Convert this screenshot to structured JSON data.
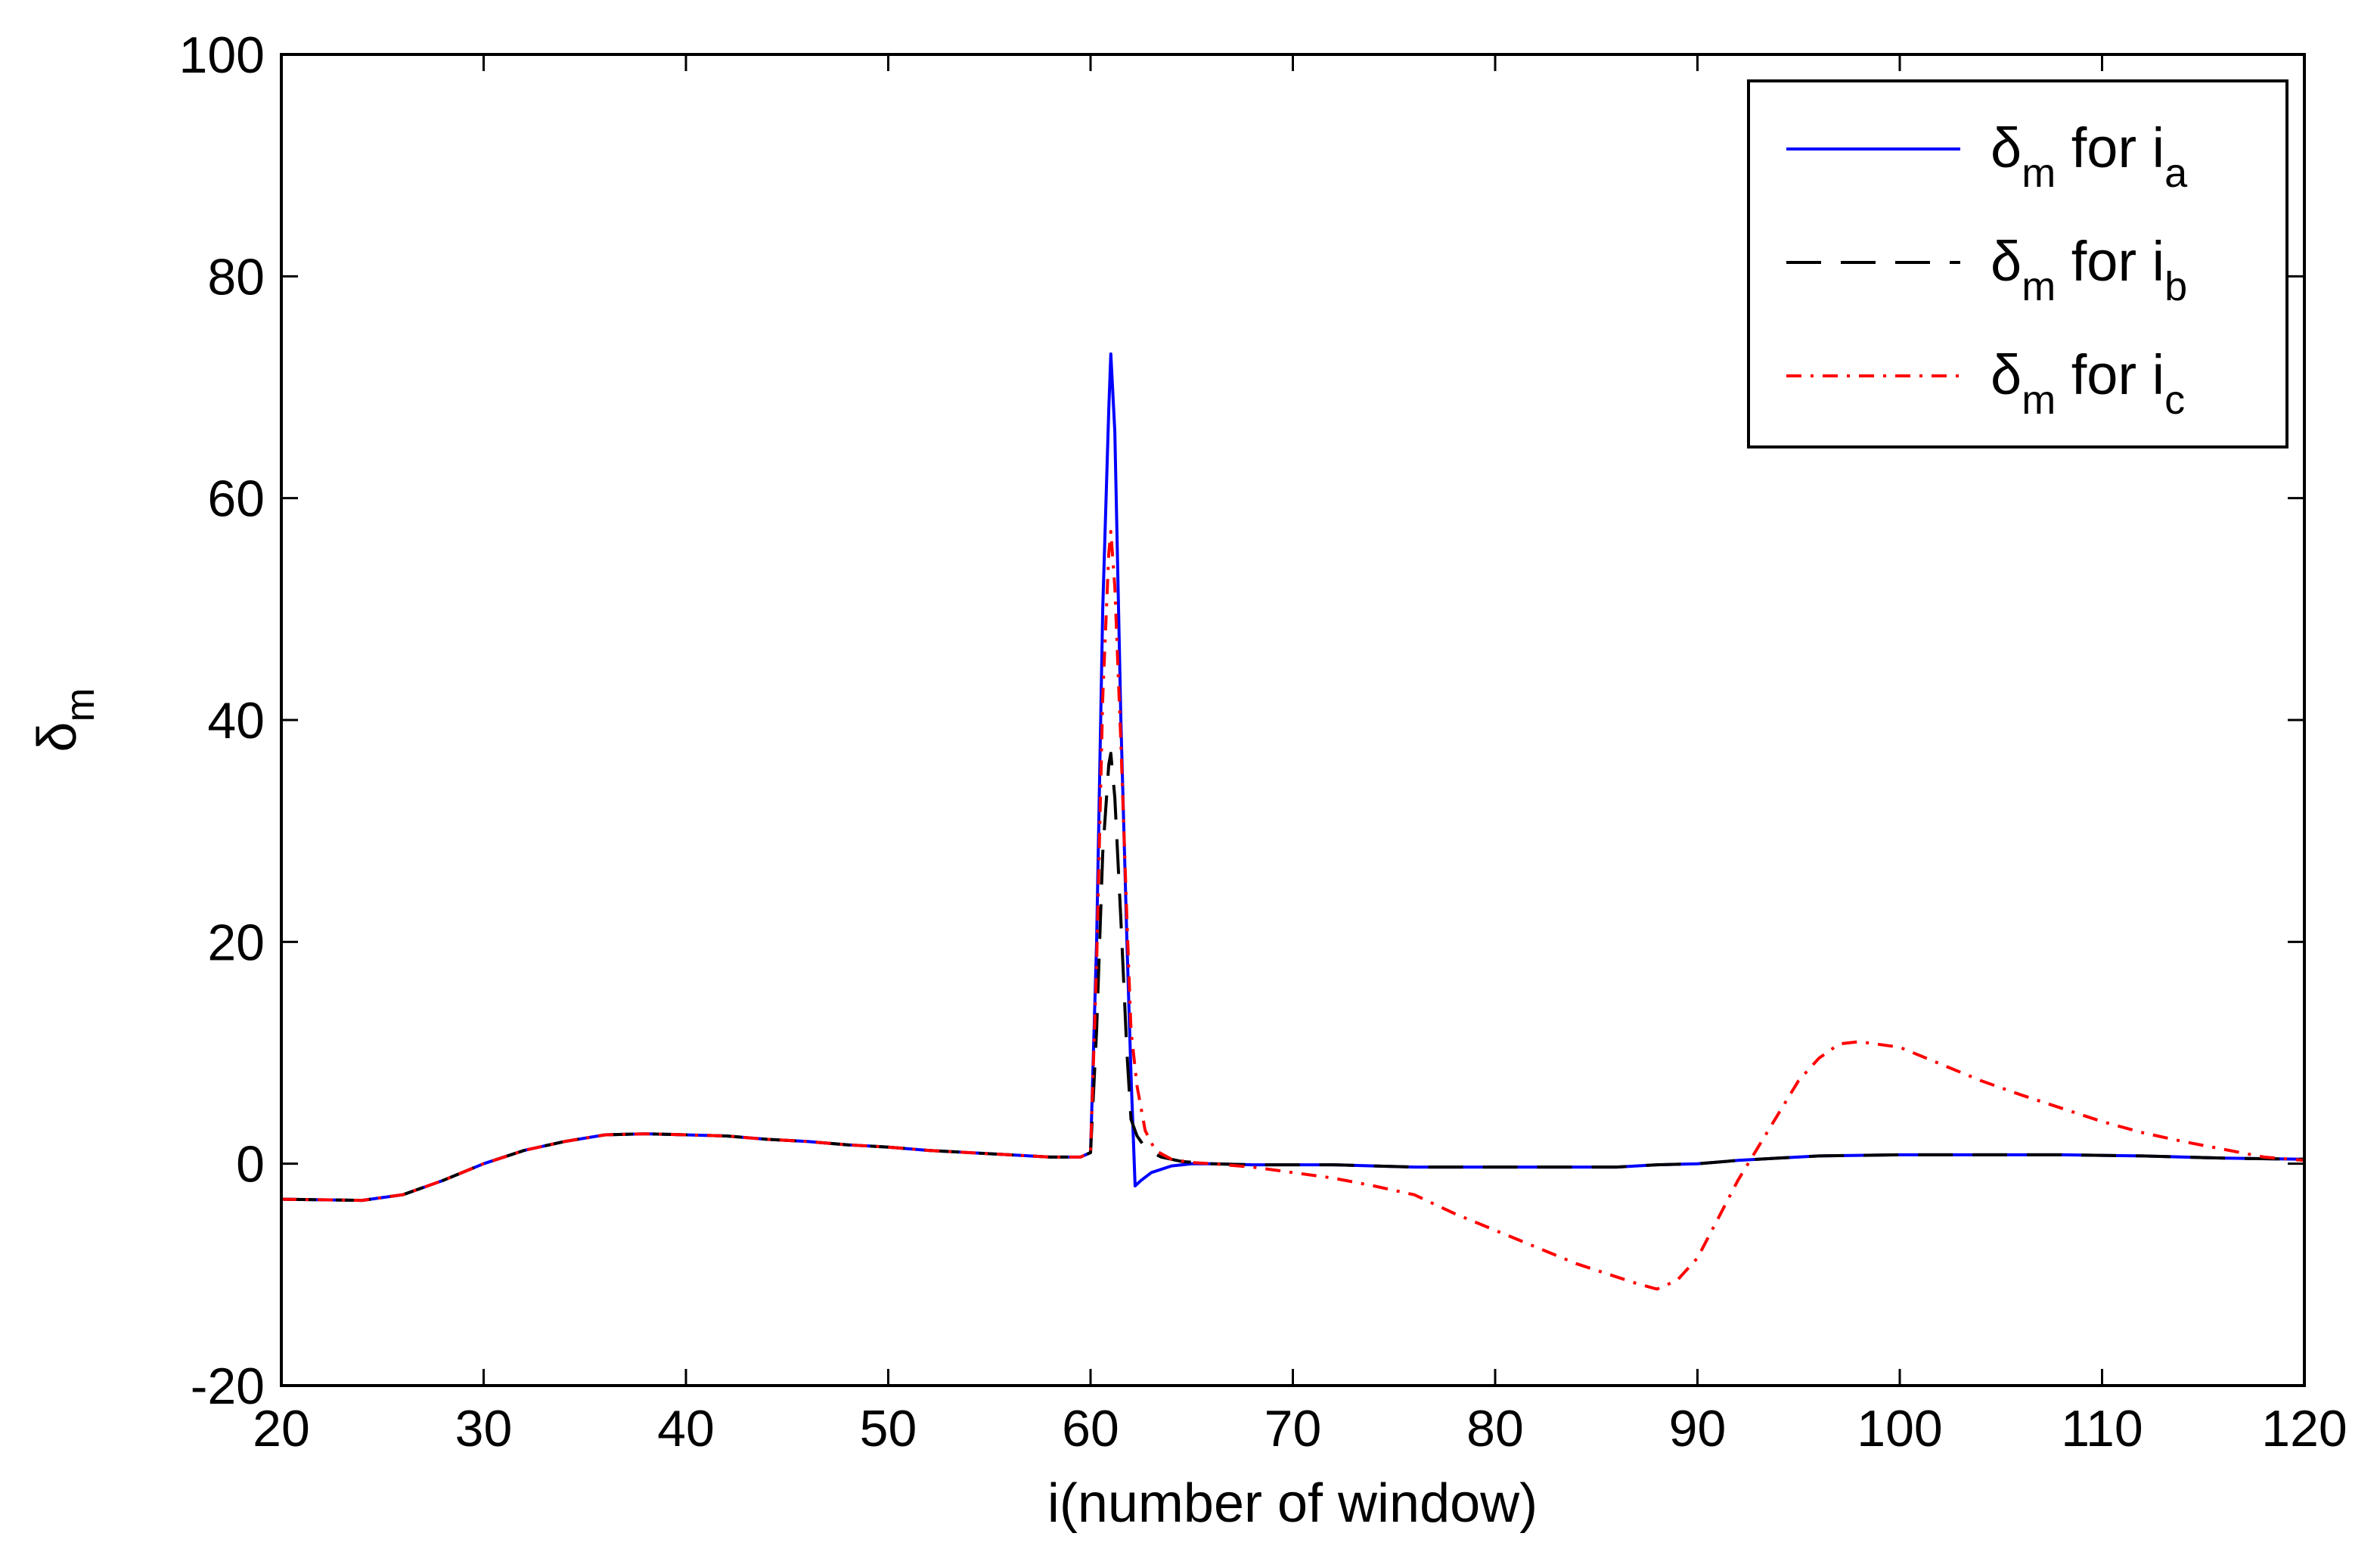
{
  "chart_data": {
    "type": "line",
    "title": "",
    "xlabel": "i(number of window)",
    "ylabel": {
      "main": "δ",
      "sub": "m"
    },
    "xlim": [
      20,
      120
    ],
    "ylim": [
      -20,
      100
    ],
    "xticks": [
      20,
      30,
      40,
      50,
      60,
      70,
      80,
      90,
      100,
      110,
      120
    ],
    "yticks": [
      -20,
      0,
      20,
      40,
      60,
      80,
      100
    ],
    "grid": false,
    "legend_position": "top-right",
    "series": [
      {
        "name": {
          "main": "δ",
          "sub": "m",
          "mid": " for i",
          "idx": "a"
        },
        "color": "#0000ff",
        "dash": "solid",
        "x": [
          20,
          24,
          26,
          28,
          30,
          32,
          34,
          36,
          38,
          40,
          42,
          44,
          46,
          48,
          50,
          52,
          54,
          56,
          58,
          59.5,
          60,
          60.3,
          60.6,
          60.9,
          61,
          61.2,
          61.5,
          61.8,
          62,
          62.2,
          62.5,
          63,
          64,
          65,
          66,
          68,
          70,
          72,
          74,
          76,
          78,
          80,
          82,
          84,
          86,
          88,
          90,
          92,
          94,
          96,
          100,
          104,
          108,
          112,
          116,
          120
        ],
        "y": [
          -3.2,
          -3.3,
          -2.8,
          -1.5,
          0,
          1.2,
          2.0,
          2.6,
          2.7,
          2.6,
          2.5,
          2.2,
          2.0,
          1.7,
          1.5,
          1.2,
          1.0,
          0.8,
          0.6,
          0.6,
          1.0,
          20,
          50,
          68,
          73,
          66,
          40,
          20,
          8,
          -2,
          -1.5,
          -0.8,
          -0.2,
          0,
          0,
          -0.1,
          -0.1,
          -0.1,
          -0.2,
          -0.3,
          -0.3,
          -0.3,
          -0.3,
          -0.3,
          -0.3,
          -0.1,
          0,
          0.3,
          0.5,
          0.7,
          0.8,
          0.8,
          0.8,
          0.7,
          0.5,
          0.4
        ]
      },
      {
        "name": {
          "main": "δ",
          "sub": "m",
          "mid": " for i",
          "idx": "b"
        },
        "color": "#000000",
        "dash": "long-dash",
        "x": [
          20,
          24,
          26,
          28,
          30,
          32,
          34,
          36,
          38,
          40,
          42,
          44,
          46,
          48,
          50,
          52,
          54,
          56,
          58,
          59.5,
          60,
          60.3,
          60.6,
          60.9,
          61,
          61.2,
          61.5,
          61.8,
          62,
          62.3,
          62.8,
          63.5,
          64.5,
          66,
          68,
          70,
          72,
          74,
          76,
          78,
          80,
          82,
          84,
          86,
          88,
          90,
          92,
          94,
          96,
          100,
          104,
          108,
          112,
          116,
          120
        ],
        "y": [
          -3.2,
          -3.3,
          -2.8,
          -1.5,
          0,
          1.2,
          2.0,
          2.6,
          2.7,
          2.6,
          2.5,
          2.2,
          2.0,
          1.7,
          1.5,
          1.2,
          1.0,
          0.8,
          0.6,
          0.6,
          1.0,
          12,
          28,
          36,
          37,
          33,
          22,
          10,
          4,
          2.5,
          1.2,
          0.6,
          0.2,
          0,
          -0.1,
          -0.1,
          -0.1,
          -0.2,
          -0.3,
          -0.3,
          -0.3,
          -0.3,
          -0.3,
          -0.3,
          -0.1,
          0,
          0.3,
          0.5,
          0.7,
          0.8,
          0.8,
          0.8,
          0.7,
          0.5,
          0.4
        ]
      },
      {
        "name": {
          "main": "δ",
          "sub": "m",
          "mid": " for i",
          "idx": "c"
        },
        "color": "#ff0000",
        "dash": "dash-dot",
        "x": [
          20,
          24,
          26,
          28,
          30,
          32,
          34,
          36,
          38,
          40,
          42,
          44,
          46,
          48,
          50,
          52,
          54,
          56,
          58,
          59.5,
          60,
          60.3,
          60.6,
          60.9,
          61,
          61.2,
          61.5,
          61.8,
          62,
          62.3,
          62.7,
          63.2,
          64,
          65,
          66,
          68,
          70,
          72,
          74,
          76,
          78,
          80,
          82,
          84,
          86,
          87,
          88,
          89,
          90,
          91,
          92,
          93,
          94,
          95,
          96,
          97,
          98,
          100,
          102,
          104,
          106,
          108,
          110,
          112,
          114,
          116,
          118,
          120
        ],
        "y": [
          -3.2,
          -3.3,
          -2.8,
          -1.5,
          0,
          1.2,
          2.0,
          2.6,
          2.7,
          2.6,
          2.5,
          2.2,
          2.0,
          1.7,
          1.5,
          1.2,
          1.0,
          0.8,
          0.6,
          0.6,
          1.0,
          18,
          42,
          55,
          57,
          52,
          38,
          22,
          12,
          7,
          3,
          1.2,
          0.4,
          0.1,
          0,
          -0.3,
          -0.8,
          -1.3,
          -2.0,
          -2.8,
          -4.5,
          -6.0,
          -7.5,
          -9.0,
          -10.2,
          -10.8,
          -11.3,
          -10.5,
          -8.5,
          -5.0,
          -1.5,
          1.5,
          4.5,
          7.5,
          9.5,
          10.8,
          11.0,
          10.5,
          9.0,
          7.5,
          6.2,
          5.0,
          3.8,
          2.8,
          2.0,
          1.3,
          0.6,
          0.3
        ]
      }
    ]
  }
}
